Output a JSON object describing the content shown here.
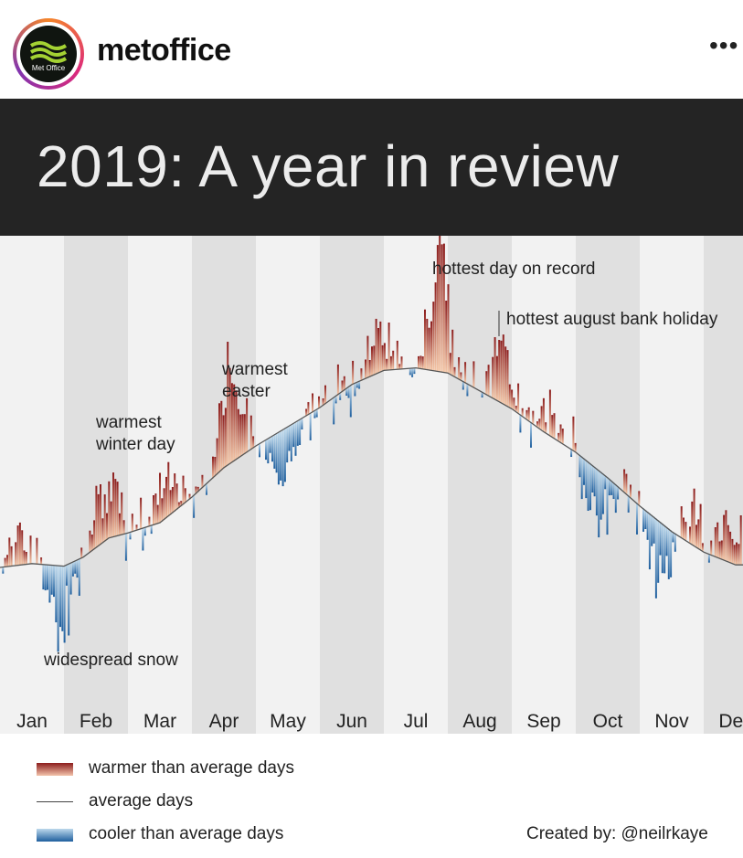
{
  "post": {
    "username": "metoffice",
    "more_label": "•••",
    "avatar_text": "Met Office"
  },
  "title": "2019: A year in review",
  "chart_data": {
    "type": "bar",
    "title": "2019: A year in review",
    "months": [
      "Jan",
      "Feb",
      "Mar",
      "Apr",
      "May",
      "Jun",
      "Jul",
      "Aug",
      "Sep",
      "Oct",
      "Nov",
      "Dec"
    ],
    "average_series": [
      {
        "x": 0.0,
        "y": 3.0
      },
      {
        "x": 0.5,
        "y": 3.3
      },
      {
        "x": 1.0,
        "y": 3.1
      },
      {
        "x": 1.3,
        "y": 3.8
      },
      {
        "x": 1.7,
        "y": 5.3
      },
      {
        "x": 2.0,
        "y": 5.7
      },
      {
        "x": 2.5,
        "y": 6.5
      },
      {
        "x": 3.0,
        "y": 8.5
      },
      {
        "x": 3.5,
        "y": 10.8
      },
      {
        "x": 4.0,
        "y": 12.5
      },
      {
        "x": 4.5,
        "y": 14.0
      },
      {
        "x": 5.0,
        "y": 15.5
      },
      {
        "x": 5.5,
        "y": 17.3
      },
      {
        "x": 6.0,
        "y": 18.4
      },
      {
        "x": 6.5,
        "y": 18.6
      },
      {
        "x": 7.0,
        "y": 18.2
      },
      {
        "x": 7.5,
        "y": 16.8
      },
      {
        "x": 8.0,
        "y": 15.4
      },
      {
        "x": 8.5,
        "y": 13.6
      },
      {
        "x": 9.0,
        "y": 12.0
      },
      {
        "x": 9.5,
        "y": 10.0
      },
      {
        "x": 10.0,
        "y": 7.8
      },
      {
        "x": 10.5,
        "y": 5.8
      },
      {
        "x": 11.0,
        "y": 4.2
      },
      {
        "x": 11.5,
        "y": 3.2
      }
    ],
    "highlights": [
      {
        "x": 0.35,
        "v": 3.5
      },
      {
        "x": 0.9,
        "v": -6.5
      },
      {
        "x": 1.6,
        "v": 6.5
      },
      {
        "x": 2.6,
        "v": 4.5
      },
      {
        "x": 3.6,
        "v": 9.5
      },
      {
        "x": 4.4,
        "v": -4.5
      },
      {
        "x": 5.9,
        "v": 4.0
      },
      {
        "x": 6.85,
        "v": 10.5
      },
      {
        "x": 7.8,
        "v": 5.5
      },
      {
        "x": 8.65,
        "v": 2.5
      },
      {
        "x": 9.3,
        "v": -5.0
      },
      {
        "x": 10.3,
        "v": -5.5
      },
      {
        "x": 10.8,
        "v": 3.0
      },
      {
        "x": 11.35,
        "v": 4.5
      }
    ],
    "annotations": [
      {
        "label": "warmest winter day",
        "lines": [
          "warmest",
          "winter day"
        ],
        "x": 1.6
      },
      {
        "label": "warmest easter",
        "lines": [
          "warmest",
          "easter"
        ],
        "x": 3.6
      },
      {
        "label": "hottest day on record",
        "lines": [
          "hottest day on record"
        ],
        "x": 6.85
      },
      {
        "label": "hottest august bank holiday",
        "lines": [
          "hottest august bank holiday"
        ],
        "x": 7.8
      },
      {
        "label": "widespread snow",
        "lines": [
          "widespread snow"
        ],
        "x": 0.9
      }
    ],
    "colors": {
      "warm_dark": "#8c1d1d",
      "warm_light": "#f4c6a6",
      "cool_dark": "#1f5f9e",
      "cool_light": "#bcd8ec",
      "band_dark": "#e0e0e0",
      "band_light": "#f2f2f2",
      "avg_line": "#555555"
    }
  },
  "legend": {
    "warmer": "warmer than average days",
    "average": "average days",
    "cooler": "cooler than average days"
  },
  "credit": "Created by: @neilrkaye"
}
